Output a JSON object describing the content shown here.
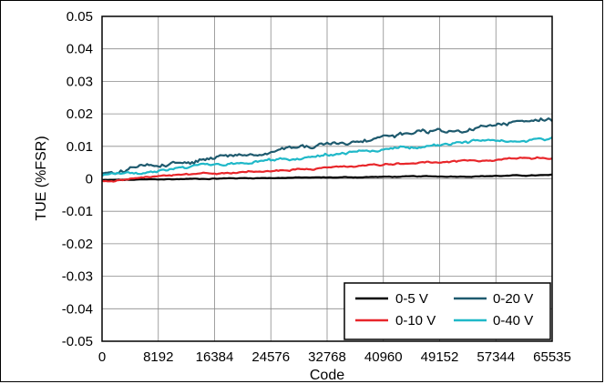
{
  "chart_data": {
    "type": "line",
    "xlabel": "Code",
    "ylabel": "TUE (%FSR)",
    "xlim": [
      0,
      65535
    ],
    "ylim": [
      -0.05,
      0.05
    ],
    "xticks": [
      "0",
      "8192",
      "16384",
      "24576",
      "32768",
      "40960",
      "49152",
      "57344",
      "65535"
    ],
    "yticks": [
      "0.05",
      "0.04",
      "0.03",
      "0.02",
      "0.01",
      "0",
      "-0.01",
      "-0.02",
      "-0.03",
      "-0.04",
      "-0.05"
    ],
    "grid": true,
    "legend_position": "bottom-right",
    "series": [
      {
        "name": "0-5 V",
        "color": "#000000",
        "x": [
          0,
          8192,
          16384,
          24576,
          32768,
          40960,
          49152,
          57344,
          65535
        ],
        "y": [
          -0.0005,
          -0.0002,
          0.0001,
          0.0003,
          0.0004,
          0.0006,
          0.0007,
          0.0009,
          0.0011
        ]
      },
      {
        "name": "0-10 V",
        "color": "#e8262a",
        "x": [
          0,
          8192,
          16384,
          24576,
          32768,
          40960,
          49152,
          57344,
          65535
        ],
        "y": [
          -0.0008,
          0.0005,
          0.0015,
          0.0025,
          0.0034,
          0.0043,
          0.0051,
          0.0058,
          0.0066
        ]
      },
      {
        "name": "0-20 V",
        "color": "#1e5a6e",
        "x": [
          0,
          8192,
          16384,
          24576,
          32768,
          40960,
          49152,
          57344,
          65535
        ],
        "y": [
          0.0015,
          0.0045,
          0.0065,
          0.0085,
          0.0105,
          0.0125,
          0.0145,
          0.0165,
          0.0185
        ]
      },
      {
        "name": "0-40 V",
        "color": "#1fb8c8",
        "x": [
          0,
          8192,
          16384,
          24576,
          32768,
          40960,
          49152,
          57344,
          65535
        ],
        "y": [
          0.0008,
          0.0025,
          0.0045,
          0.006,
          0.0075,
          0.009,
          0.0105,
          0.0118,
          0.0128
        ]
      }
    ]
  }
}
